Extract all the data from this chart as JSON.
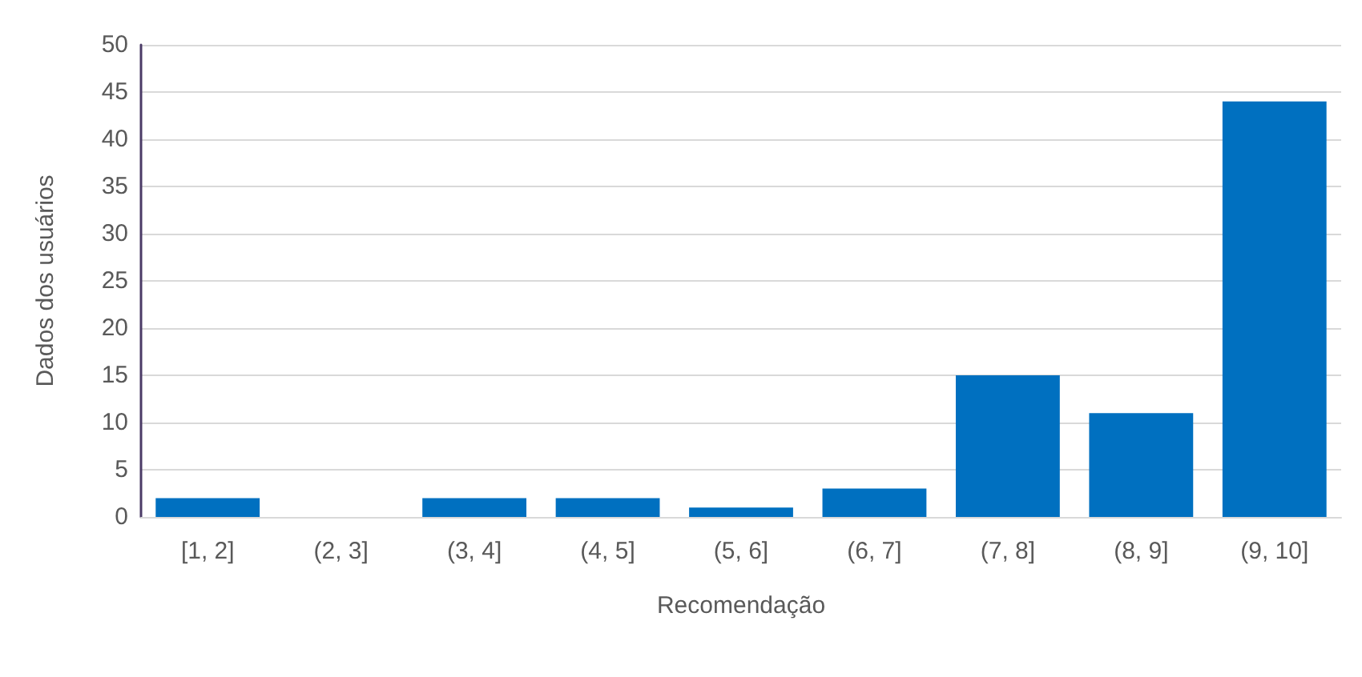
{
  "chart_data": {
    "type": "bar",
    "xlabel": "Recomendação",
    "ylabel": "Dados dos usuários",
    "categories": [
      "[1, 2]",
      "(2, 3]",
      "(3, 4]",
      "(4, 5]",
      "(5, 6]",
      "(6, 7]",
      "(7, 8]",
      "(8, 9]",
      "(9, 10]"
    ],
    "values": [
      2,
      0,
      2,
      2,
      1,
      3,
      15,
      11,
      44
    ],
    "color": "#0070c0",
    "ylim": [
      0,
      50
    ],
    "yticks": [
      0,
      5,
      10,
      15,
      20,
      25,
      30,
      35,
      40,
      45,
      50
    ],
    "grid": "y"
  }
}
